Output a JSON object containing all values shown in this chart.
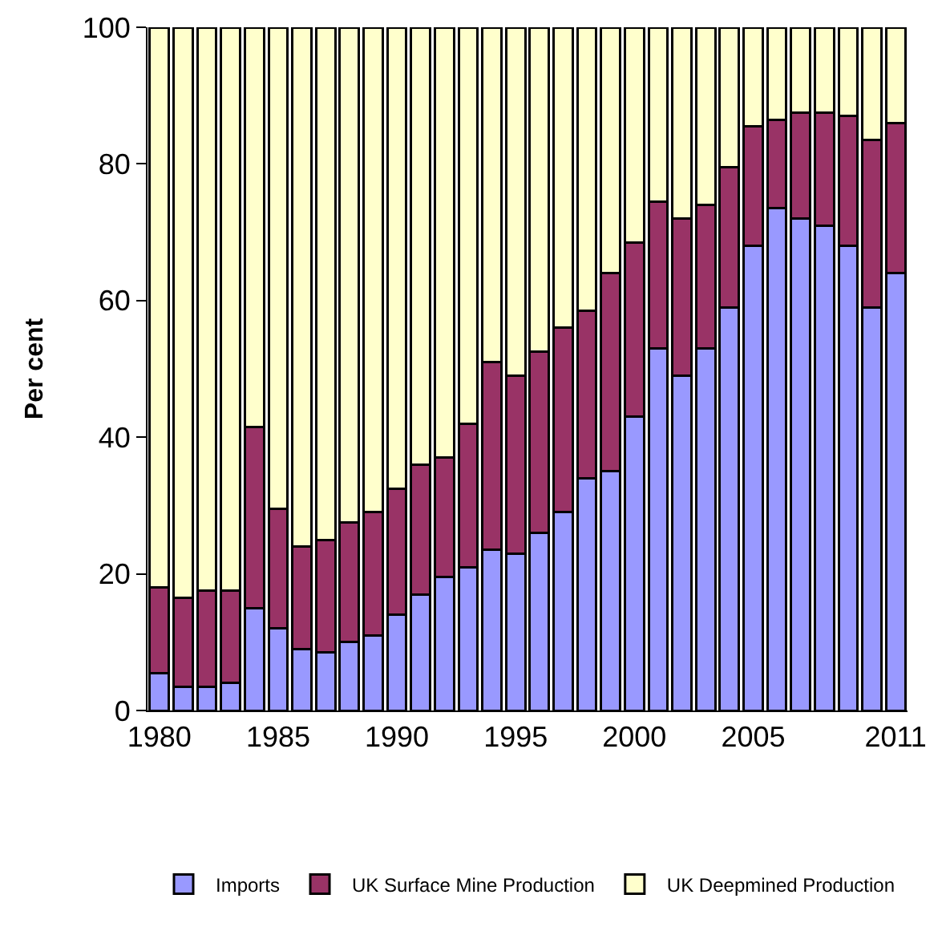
{
  "chart_data": {
    "type": "bar",
    "stacked": true,
    "ylabel": "Per cent",
    "categories": [
      "1980",
      null,
      null,
      null,
      null,
      "1985",
      null,
      null,
      null,
      null,
      "1990",
      null,
      null,
      null,
      null,
      "1995",
      null,
      null,
      null,
      null,
      "2000",
      null,
      null,
      null,
      null,
      "2005",
      null,
      null,
      null,
      null,
      null,
      "2011"
    ],
    "series": [
      {
        "name": "Imports",
        "color": "#9999ff",
        "values": [
          5.5,
          3.5,
          3.5,
          4,
          15,
          12,
          9,
          8.5,
          10,
          11,
          14,
          17,
          19.5,
          21,
          23.5,
          23,
          26,
          29,
          34,
          35,
          43,
          53,
          49,
          53,
          59,
          68,
          73.5,
          72,
          71,
          68,
          59,
          64
        ]
      },
      {
        "name": "UK Surface Mine Production",
        "color": "#993366",
        "values": [
          12.5,
          13,
          14,
          13.5,
          26.5,
          17.5,
          15,
          16.5,
          17.5,
          18,
          18.5,
          19,
          17.5,
          21,
          27.5,
          26,
          26.5,
          27,
          24.5,
          29,
          25.5,
          21.5,
          23,
          21,
          20.5,
          17.5,
          13,
          15.5,
          16.5,
          19,
          24.5,
          22
        ]
      },
      {
        "name": "UK Deepmined Production",
        "color": "#ffffcc",
        "values": [
          82,
          83.5,
          82.5,
          82.5,
          58.5,
          70.5,
          76,
          75,
          72.5,
          71,
          67.5,
          64,
          63,
          58,
          49,
          51,
          47.5,
          44,
          41.5,
          36,
          31.5,
          25.5,
          28,
          26,
          20.5,
          14.5,
          13.5,
          12.5,
          12.5,
          13,
          16.5,
          14
        ]
      }
    ],
    "ylim": [
      0,
      100
    ],
    "yticks": [
      0,
      20,
      40,
      60,
      80,
      100
    ],
    "grid": false,
    "legend": "bottom"
  }
}
